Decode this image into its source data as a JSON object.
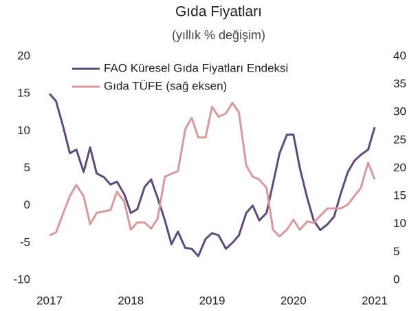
{
  "chart_data": {
    "type": "line",
    "title": "Gıda Fiyatları",
    "subtitle": "(yıllık % değişim)",
    "x": [
      2017.0,
      2017.08,
      2017.17,
      2017.25,
      2017.33,
      2017.42,
      2017.5,
      2017.58,
      2017.67,
      2017.75,
      2017.83,
      2017.92,
      2018.0,
      2018.08,
      2018.17,
      2018.25,
      2018.33,
      2018.42,
      2018.5,
      2018.58,
      2018.67,
      2018.75,
      2018.83,
      2018.92,
      2019.0,
      2019.08,
      2019.17,
      2019.25,
      2019.33,
      2019.42,
      2019.5,
      2019.58,
      2019.67,
      2019.75,
      2019.83,
      2019.92,
      2020.0,
      2020.08,
      2020.17,
      2020.25,
      2020.33,
      2020.42,
      2020.5,
      2020.58,
      2020.67,
      2020.75,
      2020.83,
      2020.92,
      2021.0
    ],
    "series": [
      {
        "name": "FAO Küresel Gıda Fiyatları Endeksi",
        "color": "#5e4a7a",
        "axis": "y",
        "values": [
          15,
          14,
          10.5,
          7,
          7.5,
          4.5,
          7.8,
          4.3,
          3.8,
          2.8,
          3.2,
          1.5,
          -1,
          -0.5,
          2.5,
          3.5,
          1,
          -2,
          -5.2,
          -3.5,
          -5.7,
          -5.8,
          -6.8,
          -4.5,
          -3.7,
          -4,
          -5.8,
          -5,
          -4,
          -1,
          0,
          -2,
          -1,
          3,
          7,
          9.5,
          9.5,
          5,
          1,
          -2,
          -3.3,
          -2.5,
          -1.5,
          1.5,
          4.5,
          6,
          6.8,
          7.5,
          10.5
        ]
      },
      {
        "name": "Gıda TÜFE (sağ eksen)",
        "color": "#d9999a",
        "axis": "y2",
        "values": [
          8,
          8.5,
          12,
          15,
          17,
          15,
          10,
          12,
          12.3,
          12.5,
          15.8,
          14,
          9,
          10.3,
          10.3,
          9.2,
          11,
          18.5,
          19,
          19.5,
          27,
          29,
          25.5,
          25.5,
          31,
          29.2,
          29.8,
          31.7,
          30,
          20.5,
          18.5,
          18,
          16.5,
          9,
          7.8,
          9,
          10.8,
          9,
          10.5,
          10.2,
          11.5,
          12.8,
          12.8,
          12.8,
          13.5,
          15,
          16.5,
          21,
          18
        ]
      }
    ],
    "xlim": [
      2017,
      2021
    ],
    "xticks": [
      2017,
      2018,
      2019,
      2020,
      2021
    ],
    "ylim": [
      -10,
      20
    ],
    "yticks": [
      -10,
      -5,
      0,
      5,
      10,
      15,
      20
    ],
    "y2lim": [
      0,
      40
    ],
    "y2ticks": [
      0,
      5,
      10,
      15,
      20,
      25,
      30,
      35,
      40
    ],
    "grid": false,
    "legend": "upper-left"
  }
}
